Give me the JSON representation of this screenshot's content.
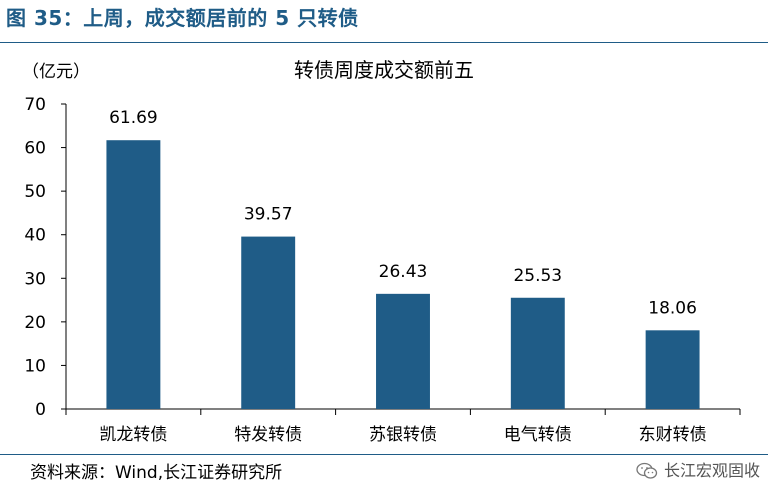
{
  "figure_caption": "图 35：上周，成交额居前的 5 只转债",
  "source_note": "资料来源：Wind,长江证券研究所",
  "watermark": {
    "text": "长江宏观固收",
    "icon": "wechat-icon"
  },
  "colors": {
    "bar": "#1F5C87",
    "caption": "#1F5C87",
    "axis": "#000000"
  },
  "chart_data": {
    "type": "bar",
    "title": "转债周度成交额前五",
    "unit_label": "（亿元）",
    "categories": [
      "凯龙转债",
      "特发转债",
      "苏银转债",
      "电气转债",
      "东财转债"
    ],
    "values": [
      61.69,
      39.57,
      26.43,
      25.53,
      18.06
    ],
    "data_labels": [
      "61.69",
      "39.57",
      "26.43",
      "25.53",
      "18.06"
    ],
    "ylim": [
      0,
      70
    ],
    "yticks": [
      0,
      10,
      20,
      30,
      40,
      50,
      60,
      70
    ],
    "grid": false,
    "legend": "none"
  }
}
